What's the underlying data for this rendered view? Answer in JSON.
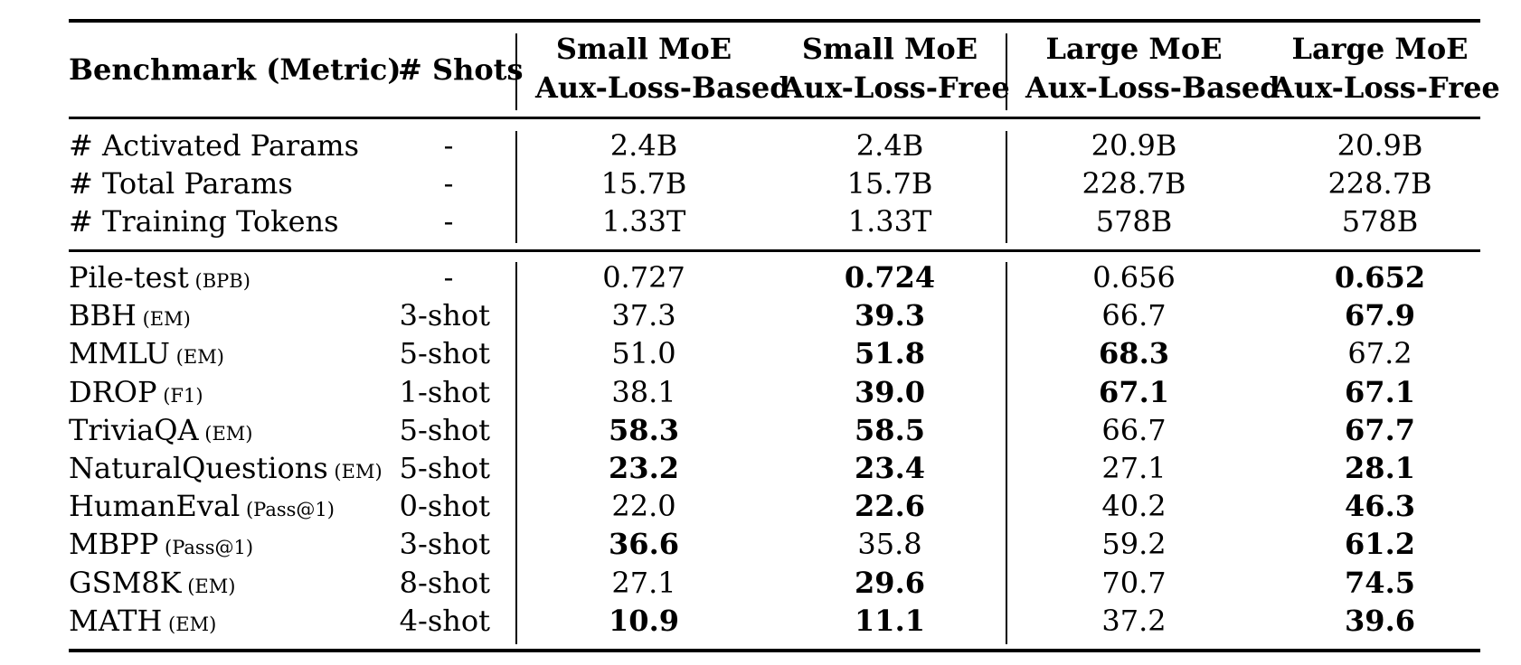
{
  "header": {
    "benchmark": "Benchmark (Metric)",
    "shots": "# Shots",
    "col1_line1": "Small MoE",
    "col1_line2": "Aux-Loss-Based",
    "col2_line1": "Small MoE",
    "col2_line2": "Aux-Loss-Free",
    "col3_line1": "Large MoE",
    "col3_line2": "Aux-Loss-Based",
    "col4_line1": "Large MoE",
    "col4_line2": "Aux-Loss-Free"
  },
  "params_rows": [
    {
      "name": "# Activated Params",
      "shots": "-",
      "values": [
        "2.4B",
        "2.4B",
        "20.9B",
        "20.9B"
      ]
    },
    {
      "name": "# Total Params",
      "shots": "-",
      "values": [
        "15.7B",
        "15.7B",
        "228.7B",
        "228.7B"
      ]
    },
    {
      "name": "# Training Tokens",
      "shots": "-",
      "values": [
        "1.33T",
        "1.33T",
        "578B",
        "578B"
      ]
    }
  ],
  "bench_rows": [
    {
      "name": "Pile-test",
      "metric": "(BPB)",
      "shots": "-",
      "values": [
        "0.727",
        "0.724",
        "0.656",
        "0.652"
      ],
      "bold": [
        false,
        true,
        false,
        true
      ]
    },
    {
      "name": "BBH",
      "metric": "(EM)",
      "shots": "3-shot",
      "values": [
        "37.3",
        "39.3",
        "66.7",
        "67.9"
      ],
      "bold": [
        false,
        true,
        false,
        true
      ]
    },
    {
      "name": "MMLU",
      "metric": "(EM)",
      "shots": "5-shot",
      "values": [
        "51.0",
        "51.8",
        "68.3",
        "67.2"
      ],
      "bold": [
        false,
        true,
        true,
        false
      ]
    },
    {
      "name": "DROP",
      "metric": "(F1)",
      "shots": "1-shot",
      "values": [
        "38.1",
        "39.0",
        "67.1",
        "67.1"
      ],
      "bold": [
        false,
        true,
        true,
        true
      ]
    },
    {
      "name": "TriviaQA",
      "metric": "(EM)",
      "shots": "5-shot",
      "values": [
        "58.3",
        "58.5",
        "66.7",
        "67.7"
      ],
      "bold": [
        true,
        true,
        false,
        true
      ]
    },
    {
      "name": "NaturalQuestions",
      "metric": "(EM)",
      "shots": "5-shot",
      "values": [
        "23.2",
        "23.4",
        "27.1",
        "28.1"
      ],
      "bold": [
        true,
        true,
        false,
        true
      ]
    },
    {
      "name": "HumanEval",
      "metric": "(Pass@1)",
      "shots": "0-shot",
      "values": [
        "22.0",
        "22.6",
        "40.2",
        "46.3"
      ],
      "bold": [
        false,
        true,
        false,
        true
      ]
    },
    {
      "name": "MBPP",
      "metric": "(Pass@1)",
      "shots": "3-shot",
      "values": [
        "36.6",
        "35.8",
        "59.2",
        "61.2"
      ],
      "bold": [
        true,
        false,
        false,
        true
      ]
    },
    {
      "name": "GSM8K",
      "metric": "(EM)",
      "shots": "8-shot",
      "values": [
        "27.1",
        "29.6",
        "70.7",
        "74.5"
      ],
      "bold": [
        false,
        true,
        false,
        true
      ]
    },
    {
      "name": "MATH",
      "metric": "(EM)",
      "shots": "4-shot",
      "values": [
        "10.9",
        "11.1",
        "37.2",
        "39.6"
      ],
      "bold": [
        true,
        true,
        false,
        true
      ]
    }
  ]
}
